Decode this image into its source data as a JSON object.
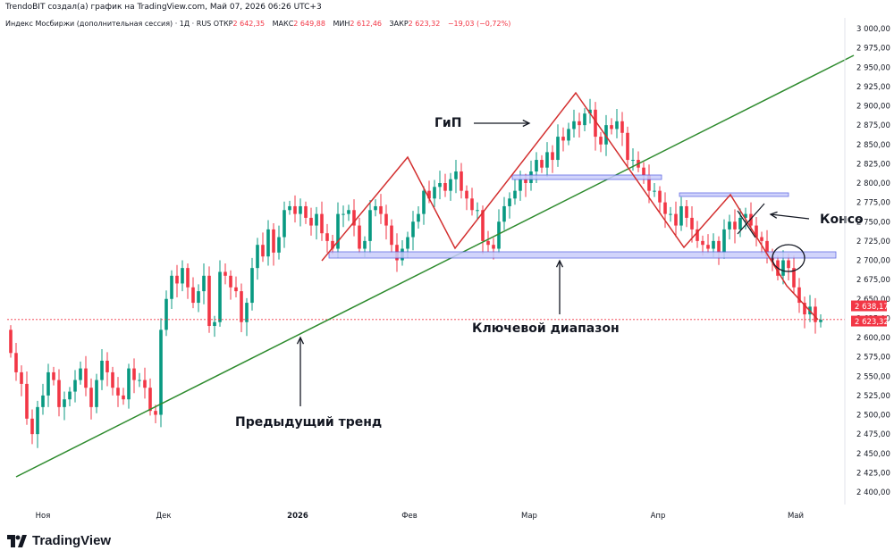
{
  "header": {
    "attribution": "TrendoBIT создал(а) график на TradingView.com, Май 07, 2026 06:26 UTC+3",
    "symbol": "Индекс Мосбиржи (дополнительная сессия) · 1Д · RUS",
    "open_label": "ОТКР",
    "open_value": "2 642,35",
    "high_label": "МАКС",
    "high_value": "2 649,88",
    "low_label": "МИН",
    "low_value": "2 612,46",
    "close_label": "ЗАКР",
    "close_value": "2 623,32",
    "change": "−19,03 (−0,72%)"
  },
  "branding": {
    "logo_text": "TradingView",
    "logo_icon": "tradingview-logo-icon"
  },
  "colors": {
    "up": "#089981",
    "down": "#f23645",
    "trend": "#2e8b2e",
    "pattern": "#d32f2f",
    "zone_fill": "#c9cdfb",
    "zone_stroke": "#4a55e0",
    "text": "#131722",
    "axis_text": "#131722",
    "price_label_bg": "#f23645"
  },
  "annotations": {
    "hns": "ГиП",
    "consolidation": "Консо",
    "key_range": "Ключевой диапазон",
    "previous_trend": "Предыдущий тренд"
  },
  "price_labels": {
    "last": "2 623,32",
    "prev_close": "2 638,17"
  },
  "chart_data": {
    "type": "candlestick",
    "title": "Индекс Мосбиржи (дополнительная сессия)",
    "timeframe": "1Д",
    "x_ticks": [
      "Ноя",
      "Дек",
      "2026",
      "Фев",
      "Мар",
      "Апр",
      "Май"
    ],
    "y_ticks": [
      "2 400,00",
      "2 425,00",
      "2 450,00",
      "2 475,00",
      "2 500,00",
      "2 525,00",
      "2 550,00",
      "2 575,00",
      "2 600,00",
      "2 625,00",
      "2 650,00",
      "2 675,00",
      "2 700,00",
      "2 725,00",
      "2 750,00",
      "2 775,00",
      "2 800,00",
      "2 825,00",
      "2 850,00",
      "2 875,00",
      "2 900,00",
      "2 925,00",
      "2 950,00",
      "2 975,00",
      "3 000,00"
    ],
    "ylim": [
      2385,
      3005
    ],
    "grid": false,
    "series_trend": [
      2482,
      2488,
      2495,
      2500,
      2507,
      2512,
      2516,
      2522,
      2528,
      2531,
      2536,
      2541,
      2546,
      2551,
      2556,
      2561,
      2566,
      2571,
      2575,
      2580,
      2585,
      2590,
      2595,
      2600,
      2605,
      2610,
      2615,
      2620,
      2625,
      2630,
      2635,
      2640,
      2644,
      2649,
      2654,
      2659,
      2664,
      2669,
      2674,
      2679,
      2684,
      2689,
      2693,
      2697,
      2701,
      2705,
      2710,
      2715,
      2720,
      2725,
      2729,
      2733,
      2737,
      2741,
      2745,
      2749,
      2753,
      2757,
      2761,
      2765,
      2769,
      2773,
      2777,
      2781,
      2785,
      2789,
      2793,
      2797,
      2801,
      2805,
      2809,
      2813,
      2817,
      2821,
      2825,
      2829,
      2833,
      2837,
      2841,
      2845,
      2849,
      2853,
      2857,
      2861,
      2865,
      2869,
      2873,
      2877,
      2881,
      2885,
      2889,
      2893,
      2897,
      2901,
      2905,
      2909,
      2913,
      2917,
      2921,
      2925,
      2929,
      2933,
      2937,
      2941,
      2945,
      2949,
      2953,
      2957,
      2961,
      2965,
      2969,
      2973,
      2977,
      2981,
      2985,
      2989,
      2993,
      2997,
      3001,
      3005,
      3009,
      3013,
      3017,
      3021,
      3025,
      3029,
      3033,
      3037,
      3041,
      3045,
      3049,
      3053,
      3057,
      3061,
      3065,
      3069,
      3073,
      3077,
      3081,
      3085,
      3089,
      3093,
      3097,
      3101,
      3105,
      3109,
      3113,
      3117,
      3121,
      3125,
      3129,
      3133,
      3137,
      3141,
      3145,
      3149,
      3153,
      3157,
      3161,
      3165,
      3169,
      3173,
      3177,
      3181,
      3185,
      3189
    ],
    "closes": [
      2580,
      2555,
      2540,
      2495,
      2475,
      2510,
      2525,
      2555,
      2545,
      2510,
      2520,
      2530,
      2545,
      2560,
      2535,
      2510,
      2545,
      2570,
      2555,
      2535,
      2525,
      2520,
      2560,
      2545,
      2545,
      2535,
      2505,
      2500,
      2610,
      2650,
      2680,
      2670,
      2690,
      2665,
      2645,
      2660,
      2680,
      2615,
      2620,
      2685,
      2680,
      2665,
      2660,
      2620,
      2645,
      2690,
      2720,
      2705,
      2740,
      2710,
      2730,
      2765,
      2770,
      2760,
      2770,
      2755,
      2745,
      2760,
      2735,
      2725,
      2715,
      2760,
      2760,
      2765,
      2745,
      2715,
      2725,
      2765,
      2770,
      2760,
      2745,
      2720,
      2700,
      2715,
      2730,
      2750,
      2760,
      2790,
      2780,
      2795,
      2800,
      2790,
      2805,
      2815,
      2790,
      2780,
      2765,
      2765,
      2725,
      2720,
      2715,
      2750,
      2770,
      2780,
      2790,
      2805,
      2800,
      2815,
      2830,
      2820,
      2840,
      2830,
      2860,
      2855,
      2870,
      2880,
      2875,
      2890,
      2895,
      2860,
      2850,
      2875,
      2870,
      2880,
      2865,
      2830,
      2830,
      2820,
      2810,
      2790,
      2790,
      2775,
      2760,
      2760,
      2745,
      2770,
      2755,
      2740,
      2725,
      2720,
      2715,
      2725,
      2710,
      2740,
      2750,
      2740,
      2755,
      2760,
      2745,
      2730,
      2725,
      2705,
      2700,
      2680,
      2700,
      2690,
      2665,
      2645,
      2630,
      2640,
      2620,
      2623
    ]
  }
}
